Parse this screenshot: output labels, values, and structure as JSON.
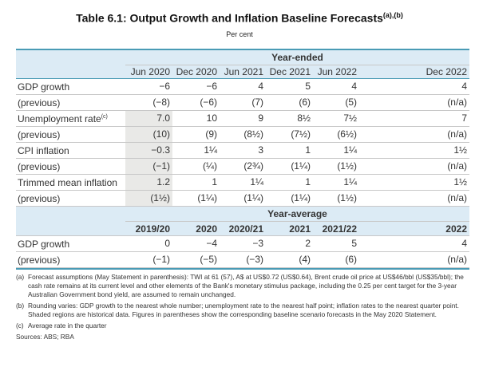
{
  "title": "Table 6.1: Output Growth and Inflation Baseline Forecasts",
  "title_sup": "(a),(b)",
  "unit": "Per cent",
  "year_ended": {
    "group": "Year-ended",
    "columns": [
      "Jun 2020",
      "Dec 2020",
      "Jun 2021",
      "Dec 2021",
      "Jun 2022",
      "Dec 2022"
    ],
    "rows": [
      {
        "label": "GDP growth",
        "sup": "",
        "values": [
          "−6",
          "−6",
          "4",
          "5",
          "4",
          "4"
        ],
        "shaded": false
      },
      {
        "label": "(previous)",
        "sup": "",
        "values": [
          "(−8)",
          "(−6)",
          "(7)",
          "(6)",
          "(5)",
          "(n/a)"
        ],
        "shaded": false
      },
      {
        "label": "Unemployment rate",
        "sup": "(c)",
        "values": [
          "7.0",
          "10",
          "9",
          "8½",
          "7½",
          "7"
        ],
        "shaded": true
      },
      {
        "label": "(previous)",
        "sup": "",
        "values": [
          "(10)",
          "(9)",
          "(8½)",
          "(7½)",
          "(6½)",
          "(n/a)"
        ],
        "shaded": true
      },
      {
        "label": "CPI inflation",
        "sup": "",
        "values": [
          "−0.3",
          "1¼",
          "3",
          "1",
          "1¼",
          "1½"
        ],
        "shaded": true
      },
      {
        "label": "(previous)",
        "sup": "",
        "values": [
          "(−1)",
          "(¼)",
          "(2¾)",
          "(1¼)",
          "(1½)",
          "(n/a)"
        ],
        "shaded": true
      },
      {
        "label": "Trimmed mean inflation",
        "sup": "",
        "values": [
          "1.2",
          "1",
          "1¼",
          "1",
          "1¼",
          "1½"
        ],
        "shaded": true
      },
      {
        "label": "(previous)",
        "sup": "",
        "values": [
          "(1½)",
          "(1¼)",
          "(1¼)",
          "(1¼)",
          "(1½)",
          "(n/a)"
        ],
        "shaded": true
      }
    ]
  },
  "year_average": {
    "group": "Year-average",
    "columns": [
      "2019/20",
      "2020",
      "2020/21",
      "2021",
      "2021/22",
      "2022"
    ],
    "rows": [
      {
        "label": "GDP growth",
        "sup": "",
        "values": [
          "0",
          "−4",
          "−3",
          "2",
          "5",
          "4"
        ]
      },
      {
        "label": "(previous)",
        "sup": "",
        "values": [
          "(−1)",
          "(−5)",
          "(−3)",
          "(4)",
          "(6)",
          "(n/a)"
        ]
      }
    ]
  },
  "notes": [
    {
      "mark": "(a)",
      "text": "Forecast assumptions (May Statement in parenthesis): TWI at 61 (57), A$ at US$0.72 (US$0.64), Brent crude oil price at US$46/bbl (US$35/bbl); the cash rate remains at its current level and other elements of the Bank's monetary stimulus package, including the 0.25 per cent target for the 3-year Australian Government bond yield, are assumed to remain unchanged."
    },
    {
      "mark": "(b)",
      "text": "Rounding varies: GDP growth to the nearest whole number; unemployment rate to the nearest half point; inflation rates to the nearest quarter point. Shaded regions are historical data. Figures in parentheses show the corresponding baseline scenario forecasts in the May 2020 Statement."
    },
    {
      "mark": "(c)",
      "text": "Average rate in the quarter"
    }
  ],
  "sources": "Sources: ABS; RBA",
  "colors": {
    "header_bg": "#dcebf5",
    "rule": "#4a9bb5",
    "shade": "#e9e9e7"
  }
}
